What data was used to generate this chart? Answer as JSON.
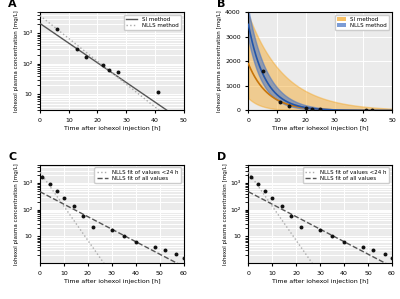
{
  "panel_A": {
    "label": "A",
    "data_x": [
      6,
      13,
      16,
      22,
      24,
      27,
      41
    ],
    "data_y": [
      1400,
      310,
      170,
      95,
      65,
      55,
      12
    ],
    "SI_line": {
      "C0": 2100,
      "k": 0.148
    },
    "NLLS_line": {
      "C0": 3800,
      "k": 0.172
    },
    "xlim": [
      0,
      50
    ],
    "yticks": [
      10,
      100,
      1000
    ],
    "ylim_log": [
      3,
      5000
    ],
    "xlabel": "Time after iohexol injection [h]",
    "ylabel": "Iohexol plasma concentration [mg/L]"
  },
  "panel_B": {
    "label": "B",
    "data_x": [
      5,
      11,
      14,
      20,
      22,
      25,
      41,
      43
    ],
    "data_y": [
      1600,
      340,
      190,
      105,
      75,
      65,
      15,
      10
    ],
    "SI_center": {
      "C0": 1900,
      "k": 0.148
    },
    "SI_upper": {
      "C0": 3900,
      "k": 0.08
    },
    "SI_lower": {
      "C0": 500,
      "k": 0.22
    },
    "NLLS_center": {
      "C0": 3500,
      "k": 0.17
    },
    "NLLS_upper": {
      "C0": 4100,
      "k": 0.148
    },
    "NLLS_lower": {
      "C0": 2900,
      "k": 0.192
    },
    "xlim": [
      0,
      50
    ],
    "ylim": [
      0,
      4000
    ],
    "xlabel": "Time after iohexol injection [h]",
    "ylabel": "Iohexol plasma concentration [mg/L]",
    "SI_color": "#f5a623",
    "NLLS_color": "#4472c4"
  },
  "panel_C": {
    "label": "C",
    "data_x": [
      1,
      4,
      7,
      10,
      14,
      18,
      22,
      30,
      35,
      40,
      48,
      52,
      57,
      60
    ],
    "data_y": [
      1700,
      900,
      500,
      270,
      140,
      60,
      22,
      18,
      10,
      6,
      4.0,
      3.0,
      2.2,
      1.5
    ],
    "fit_lt24": {
      "C0": 2600,
      "k": 0.295
    },
    "fit_all": {
      "C0": 480,
      "k": 0.108
    },
    "xlim": [
      0,
      60
    ],
    "ylim_log": [
      1,
      5000
    ],
    "xlabel": "Time after iohexol injection [h]",
    "ylabel": "Iohexol plasma concentration [mg/L]"
  },
  "panel_D": {
    "label": "D",
    "data_x": [
      1,
      4,
      7,
      10,
      14,
      18,
      22,
      30,
      35,
      40,
      48,
      52,
      57,
      60
    ],
    "data_y": [
      1700,
      900,
      500,
      270,
      140,
      60,
      22,
      18,
      10,
      6,
      4.0,
      3.0,
      2.2,
      1.5
    ],
    "fit_lt24": {
      "C0": 2600,
      "k": 0.295
    },
    "fit_all": {
      "C0": 480,
      "k": 0.108
    },
    "xlim": [
      0,
      60
    ],
    "ylim_log": [
      1,
      5000
    ],
    "xlabel": "Time after iohexol injection [h]",
    "ylabel": "Iohexol plasma concentration [mg/L]"
  },
  "bg_color": "#ebebeb",
  "grid_color": "#ffffff",
  "marker_color": "#111111",
  "fig_bg": "#ffffff",
  "SI_line_color": "#555555",
  "NLLS_line_color": "#aaaaaa"
}
